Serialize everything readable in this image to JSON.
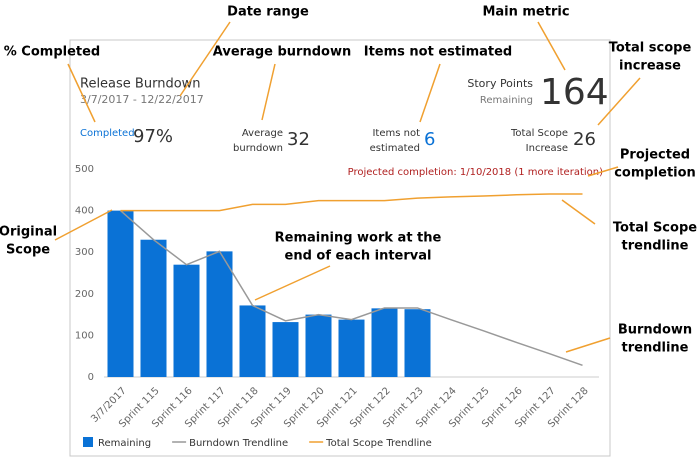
{
  "chart_data": {
    "type": "bar",
    "title": "Release Burndown",
    "subtitle": "3/7/2017 - 12/22/2017",
    "categories": [
      "3/7/2017",
      "Sprint 115",
      "Sprint 116",
      "Sprint 117",
      "Sprint 118",
      "Sprint 119",
      "Sprint 120",
      "Sprint 121",
      "Sprint 122",
      "Sprint 123",
      "Sprint 124",
      "Sprint 125",
      "Sprint 126",
      "Sprint 127",
      "Sprint 128"
    ],
    "series": [
      {
        "name": "Remaining",
        "type": "bar",
        "color": "#0a72d6",
        "values": [
          400,
          330,
          270,
          302,
          172,
          132,
          150,
          138,
          165,
          163,
          null,
          null,
          null,
          null,
          null
        ]
      },
      {
        "name": "Burndown Trendline",
        "type": "line",
        "color": "#999999",
        "values": [
          400,
          330,
          270,
          302,
          172,
          135,
          150,
          138,
          166,
          166,
          138,
          111,
          83,
          56,
          28
        ]
      },
      {
        "name": "Total Scope Trendline",
        "type": "line",
        "color": "#f0a030",
        "values": [
          400,
          400,
          400,
          400,
          415,
          415,
          424,
          424,
          424,
          430,
          433,
          435,
          438,
          440,
          440
        ]
      }
    ],
    "ylim": [
      0,
      500
    ],
    "yticks": [
      0,
      100,
      200,
      300,
      400,
      500
    ],
    "grid": false,
    "legend": "bottom-left",
    "projection": "Projected completion: 1/10/2018 (1 more iteration)"
  },
  "summary": {
    "main": {
      "label": [
        "Story Points",
        "Remaining"
      ],
      "value": "164"
    },
    "metrics": [
      {
        "label": [
          "Completed"
        ],
        "value": "97%"
      },
      {
        "label": [
          "Average",
          "burndown"
        ],
        "value": "32"
      },
      {
        "label": [
          "Items not",
          "estimated"
        ],
        "value": "6"
      },
      {
        "label": [
          "Total Scope",
          "Increase"
        ],
        "value": "26"
      }
    ]
  },
  "annotations": [
    {
      "lines": [
        "Date range"
      ]
    },
    {
      "lines": [
        "% Completed"
      ]
    },
    {
      "lines": [
        "Average burndown"
      ]
    },
    {
      "lines": [
        "Items not estimated"
      ]
    },
    {
      "lines": [
        "Main metric"
      ]
    },
    {
      "lines": [
        "Total scope",
        "increase"
      ]
    },
    {
      "lines": [
        "Projected",
        "completion"
      ]
    },
    {
      "lines": [
        "Original",
        "Scope"
      ]
    },
    {
      "lines": [
        "Total Scope",
        "trendline"
      ]
    },
    {
      "lines": [
        "Remaining work at the",
        "end of each interval"
      ]
    },
    {
      "lines": [
        "Burndown",
        "trendline"
      ]
    }
  ]
}
